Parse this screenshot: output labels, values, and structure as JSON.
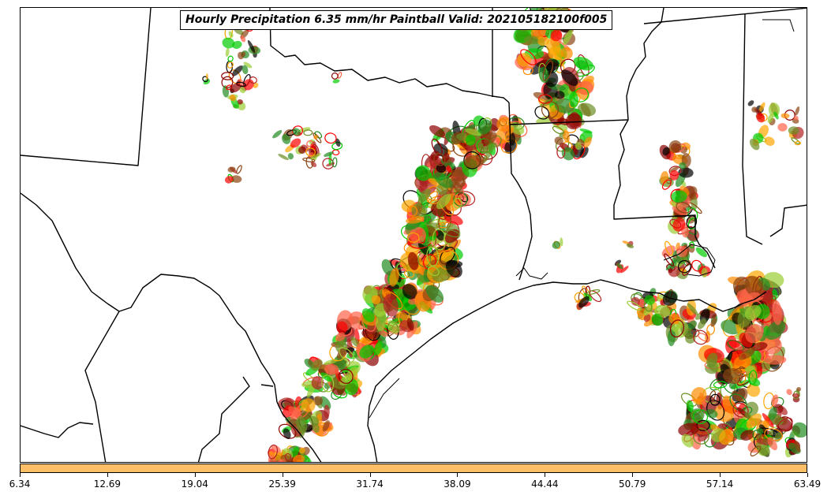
{
  "title": "Hourly Precipitation 6.35 mm/hr Paintball Valid: 202105182100f005",
  "colors": {
    "colorbar": "#ffbf66",
    "boundaries": "#000000",
    "member_palette": [
      "#00cc00",
      "#ff8c00",
      "#ff0000",
      "#8b0000",
      "#6b8e23",
      "#228b22",
      "#9acd32",
      "#b22222",
      "#ff6347",
      "#000000",
      "#ffa500",
      "#8b4513"
    ]
  },
  "colorbar": {
    "ticks": [
      "6.34",
      "12.69",
      "19.04",
      "25.39",
      "31.74",
      "38.09",
      "44.44",
      "50.79",
      "57.14",
      "63.49"
    ]
  },
  "map": {
    "region": "Southern Plains / Gulf Coast (Texas, Oklahoma, Arkansas, Louisiana, Mississippi)"
  }
}
